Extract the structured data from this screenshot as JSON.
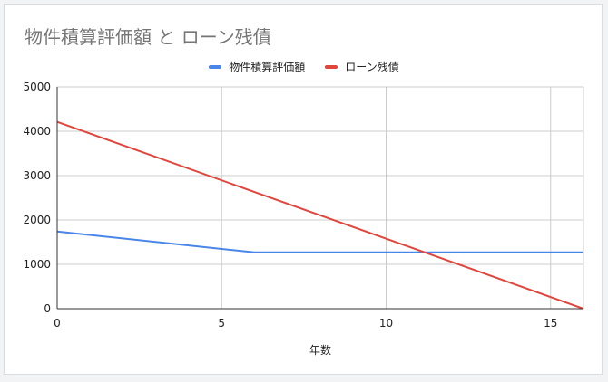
{
  "chart_data": {
    "type": "line",
    "title": "物件積算評価額 と ローン残債",
    "xlabel": "年数",
    "ylabel": "",
    "xlim": [
      0,
      16
    ],
    "ylim": [
      0,
      5000
    ],
    "x_ticks": [
      "0",
      "5",
      "10",
      "15"
    ],
    "y_ticks": [
      "0",
      "1000",
      "2000",
      "3000",
      "4000",
      "5000"
    ],
    "grid": true,
    "legend_position": "top",
    "series": [
      {
        "name": "物件積算評価額",
        "color": "#4a86e8",
        "points": [
          [
            0,
            1740
          ],
          [
            6,
            1270
          ],
          [
            16,
            1270
          ]
        ]
      },
      {
        "name": "ローン残債",
        "color": "#e0463c",
        "points": [
          [
            0,
            4210
          ],
          [
            16,
            0
          ]
        ]
      }
    ]
  }
}
